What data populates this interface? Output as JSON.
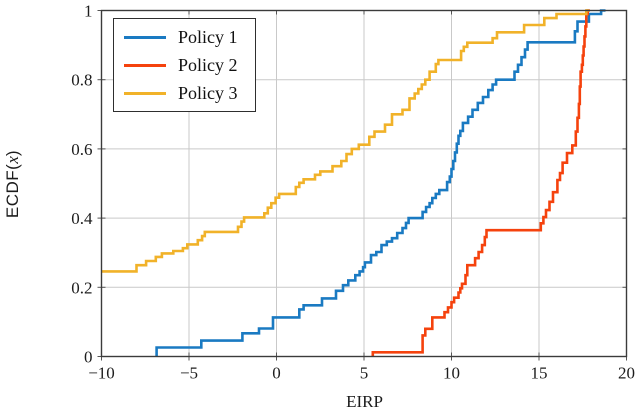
{
  "figure": {
    "background": "#ffffff",
    "axis_color": "#3b3b3b",
    "grid_color": "#c9c9c9",
    "tick_color": "#555555"
  },
  "chart_data": {
    "type": "line",
    "variant": "ecdf_step",
    "title": "",
    "xlabel": "EIRP",
    "ylabel": "ECDF(x)",
    "ylabel_parts": {
      "prefix": "ECDF(",
      "var": "x",
      "suffix": ")"
    },
    "xlim": [
      -10,
      20
    ],
    "ylim": [
      0,
      1
    ],
    "xtick_values": [
      -10,
      -5,
      0,
      5,
      10,
      15,
      20
    ],
    "xtick_labels": [
      "−10",
      "−5",
      "0",
      "5",
      "10",
      "15",
      "20"
    ],
    "ytick_values": [
      0,
      0.2,
      0.4,
      0.6,
      0.8,
      1
    ],
    "ytick_labels": [
      "0",
      "0.2",
      "0.4",
      "0.6",
      "0.8",
      "1"
    ],
    "grid": true,
    "legend": {
      "position": "top-left"
    },
    "series": [
      {
        "name": "Policy 1",
        "color": "#1a7ac2",
        "start": [
          -6.85,
          0
        ],
        "end_x": 18.8,
        "steps": [
          [
            -6.85,
            0.026
          ],
          [
            -4.3,
            0.046
          ],
          [
            -1.95,
            0.067
          ],
          [
            -1.0,
            0.081
          ],
          [
            -0.2,
            0.113
          ],
          [
            1.3,
            0.136
          ],
          [
            1.55,
            0.148
          ],
          [
            2.6,
            0.168
          ],
          [
            3.4,
            0.19
          ],
          [
            3.8,
            0.206
          ],
          [
            4.1,
            0.22
          ],
          [
            4.5,
            0.235
          ],
          [
            4.75,
            0.246
          ],
          [
            4.95,
            0.258
          ],
          [
            5.05,
            0.272
          ],
          [
            5.4,
            0.293
          ],
          [
            5.7,
            0.302
          ],
          [
            6.0,
            0.322
          ],
          [
            6.3,
            0.332
          ],
          [
            6.6,
            0.342
          ],
          [
            6.9,
            0.357
          ],
          [
            7.2,
            0.371
          ],
          [
            7.4,
            0.386
          ],
          [
            7.55,
            0.4
          ],
          [
            8.35,
            0.418
          ],
          [
            8.55,
            0.432
          ],
          [
            8.75,
            0.443
          ],
          [
            8.9,
            0.458
          ],
          [
            9.1,
            0.47
          ],
          [
            9.3,
            0.481
          ],
          [
            9.75,
            0.504
          ],
          [
            9.9,
            0.52
          ],
          [
            10.0,
            0.542
          ],
          [
            10.1,
            0.565
          ],
          [
            10.2,
            0.59
          ],
          [
            10.3,
            0.615
          ],
          [
            10.4,
            0.638
          ],
          [
            10.5,
            0.652
          ],
          [
            10.65,
            0.675
          ],
          [
            10.95,
            0.693
          ],
          [
            11.2,
            0.713
          ],
          [
            11.5,
            0.733
          ],
          [
            11.8,
            0.75
          ],
          [
            12.1,
            0.77
          ],
          [
            12.35,
            0.786
          ],
          [
            12.55,
            0.8
          ],
          [
            13.6,
            0.823
          ],
          [
            13.8,
            0.843
          ],
          [
            14.0,
            0.865
          ],
          [
            14.2,
            0.887
          ],
          [
            14.35,
            0.908
          ],
          [
            17.05,
            0.94
          ],
          [
            17.2,
            0.968
          ],
          [
            17.85,
            0.99
          ],
          [
            18.55,
            1.0
          ]
        ]
      },
      {
        "name": "Policy 2",
        "color": "#f5420d",
        "start": [
          5.5,
          0
        ],
        "end_x": 17.9,
        "steps": [
          [
            5.5,
            0.012
          ],
          [
            8.35,
            0.061
          ],
          [
            8.5,
            0.08
          ],
          [
            8.9,
            0.113
          ],
          [
            9.6,
            0.128
          ],
          [
            9.8,
            0.142
          ],
          [
            10.0,
            0.157
          ],
          [
            10.15,
            0.17
          ],
          [
            10.4,
            0.185
          ],
          [
            10.5,
            0.197
          ],
          [
            10.6,
            0.21
          ],
          [
            10.8,
            0.235
          ],
          [
            10.9,
            0.264
          ],
          [
            11.35,
            0.284
          ],
          [
            11.55,
            0.302
          ],
          [
            11.75,
            0.322
          ],
          [
            11.9,
            0.345
          ],
          [
            12.0,
            0.365
          ],
          [
            15.1,
            0.385
          ],
          [
            15.25,
            0.403
          ],
          [
            15.4,
            0.423
          ],
          [
            15.6,
            0.447
          ],
          [
            15.8,
            0.475
          ],
          [
            16.05,
            0.51
          ],
          [
            16.2,
            0.53
          ],
          [
            16.35,
            0.56
          ],
          [
            16.6,
            0.588
          ],
          [
            16.9,
            0.61
          ],
          [
            17.1,
            0.65
          ],
          [
            17.2,
            0.69
          ],
          [
            17.28,
            0.73
          ],
          [
            17.33,
            0.78
          ],
          [
            17.38,
            0.823
          ],
          [
            17.45,
            0.843
          ],
          [
            17.5,
            0.87
          ],
          [
            17.55,
            0.896
          ],
          [
            17.6,
            0.925
          ],
          [
            17.65,
            0.954
          ],
          [
            17.7,
            0.99
          ],
          [
            17.78,
            1.0
          ]
        ]
      },
      {
        "name": "Policy 3",
        "color": "#f1b229",
        "start": [
          -10,
          0.246
        ],
        "end_x": 17.85,
        "steps": [
          [
            -8.0,
            0.264
          ],
          [
            -7.45,
            0.276
          ],
          [
            -6.9,
            0.288
          ],
          [
            -6.55,
            0.298
          ],
          [
            -5.9,
            0.305
          ],
          [
            -5.35,
            0.313
          ],
          [
            -5.1,
            0.324
          ],
          [
            -4.5,
            0.336
          ],
          [
            -4.25,
            0.348
          ],
          [
            -4.1,
            0.36
          ],
          [
            -2.2,
            0.375
          ],
          [
            -2.0,
            0.39
          ],
          [
            -1.85,
            0.402
          ],
          [
            -0.7,
            0.414
          ],
          [
            -0.5,
            0.43
          ],
          [
            -0.3,
            0.443
          ],
          [
            -0.05,
            0.459
          ],
          [
            0.15,
            0.47
          ],
          [
            1.1,
            0.49
          ],
          [
            1.3,
            0.502
          ],
          [
            1.55,
            0.512
          ],
          [
            2.2,
            0.525
          ],
          [
            2.5,
            0.535
          ],
          [
            3.2,
            0.55
          ],
          [
            3.7,
            0.565
          ],
          [
            4.0,
            0.585
          ],
          [
            4.3,
            0.6
          ],
          [
            4.7,
            0.612
          ],
          [
            5.3,
            0.635
          ],
          [
            5.6,
            0.65
          ],
          [
            6.2,
            0.67
          ],
          [
            6.6,
            0.7
          ],
          [
            7.2,
            0.713
          ],
          [
            7.6,
            0.746
          ],
          [
            7.9,
            0.76
          ],
          [
            8.1,
            0.773
          ],
          [
            8.3,
            0.786
          ],
          [
            8.5,
            0.8
          ],
          [
            8.75,
            0.823
          ],
          [
            9.1,
            0.845
          ],
          [
            9.25,
            0.857
          ],
          [
            10.55,
            0.883
          ],
          [
            10.7,
            0.895
          ],
          [
            10.9,
            0.907
          ],
          [
            12.35,
            0.92
          ],
          [
            12.6,
            0.937
          ],
          [
            14.15,
            0.958
          ],
          [
            15.3,
            0.978
          ],
          [
            16.0,
            0.99
          ],
          [
            17.7,
            1.0
          ]
        ]
      }
    ]
  }
}
